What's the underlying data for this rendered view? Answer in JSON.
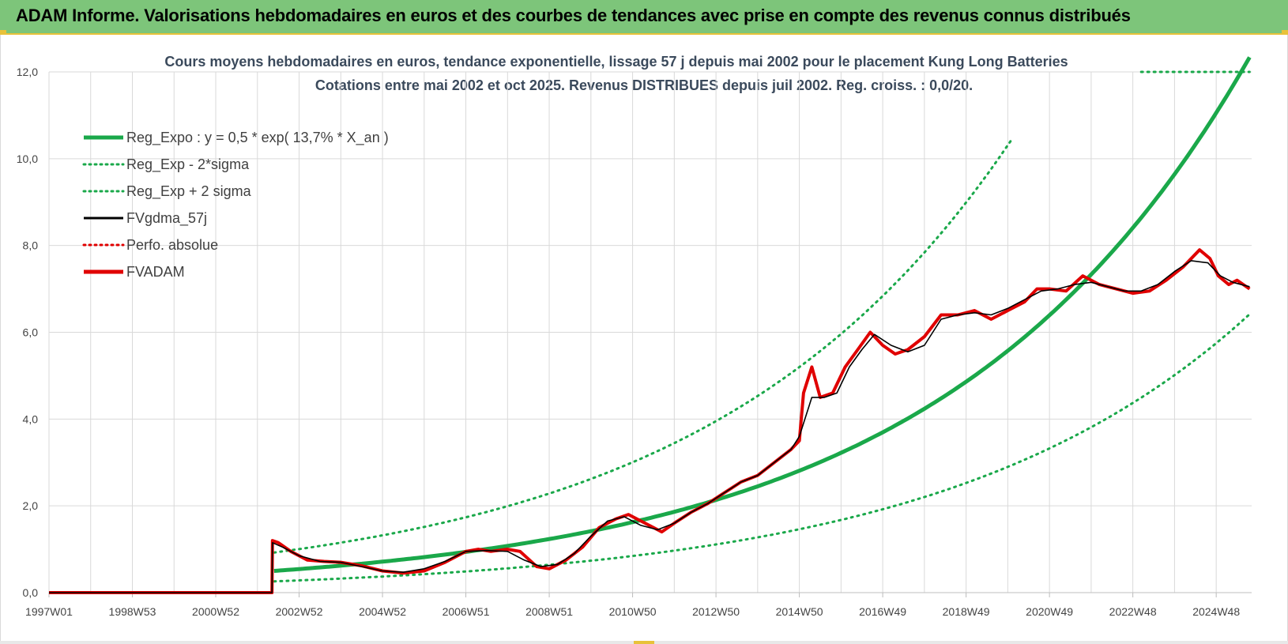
{
  "banner": {
    "title": "ADAM Informe. Valorisations hebdomadaires en euros et des courbes de tendances avec prise en compte des revenus connus distribués"
  },
  "colors": {
    "banner_bg": "#7dc57a",
    "accent_yellow": "#e8c23a",
    "reg_expo": "#1aa84a",
    "sigma_bands": "#1aa84a",
    "fvgdma": "#000000",
    "perfo": "#e00000",
    "fvadam": "#e00000",
    "grid": "#d9d9d9",
    "title_text": "#3b4a5c"
  },
  "chart_data": {
    "type": "line",
    "title_line1": "Cours moyens hebdomadaires en euros, tendance exponentielle, lissage 57 j depuis mai 2002 pour le placement Kung Long Batteries",
    "title_line2": "Cotations entre mai 2002 et oct 2025. Revenus DISTRIBUES depuis juil 2002. Reg. croiss. : 0,0/20.",
    "xlabel": "",
    "ylabel": "",
    "ylim": [
      0,
      12
    ],
    "y_ticks": [
      "0,0",
      "2,0",
      "4,0",
      "6,0",
      "8,0",
      "10,0",
      "12,0"
    ],
    "y_tick_values": [
      0,
      2,
      4,
      6,
      8,
      10,
      12
    ],
    "x_range_years": [
      1997.0,
      2025.85
    ],
    "x_tick_labels": [
      "1997W01",
      "1998W53",
      "2000W52",
      "2002W52",
      "2004W52",
      "2006W51",
      "2008W51",
      "2010W50",
      "2012W50",
      "2014W50",
      "2016W49",
      "2018W49",
      "2020W49",
      "2022W48",
      "2024W48"
    ],
    "x_tick_years": [
      1997.0,
      1999.0,
      2001.0,
      2003.0,
      2005.0,
      2007.0,
      2009.0,
      2011.0,
      2013.0,
      2015.0,
      2017.0,
      2019.0,
      2021.0,
      2023.0,
      2025.0
    ],
    "grid": true,
    "legend_position": "top-left",
    "legend": [
      {
        "label": "Reg_Expo : y = 0,5 * exp( 13,7% *  X_an )",
        "color": "#1aa84a",
        "style": "solid-thick"
      },
      {
        "label": "Reg_Exp - 2*sigma",
        "color": "#1aa84a",
        "style": "dotted"
      },
      {
        "label": "Reg_Exp + 2 sigma",
        "color": "#1aa84a",
        "style": "dotted"
      },
      {
        "label": "FVgdma_57j",
        "color": "#000000",
        "style": "solid"
      },
      {
        "label": "Perfo. absolue",
        "color": "#e00000",
        "style": "dotted"
      },
      {
        "label": "FVADAM",
        "color": "#e00000",
        "style": "solid-thick"
      }
    ],
    "regression": {
      "start_year": 2002.4,
      "end_year": 2025.8,
      "a": 0.5,
      "rate": 0.137,
      "minus_2sigma_factor": 0.52,
      "plus_2sigma_factor": 1.85,
      "upper_band_cap": 12.0
    },
    "series": [
      {
        "name": "FVADAM",
        "x": [
          1997.0,
          2002.35,
          2002.36,
          2002.5,
          2002.8,
          2003.2,
          2003.6,
          2004.0,
          2004.5,
          2005.0,
          2005.5,
          2006.0,
          2006.5,
          2007.0,
          2007.3,
          2007.6,
          2008.0,
          2008.3,
          2008.7,
          2009.0,
          2009.4,
          2009.8,
          2010.2,
          2010.6,
          2010.9,
          2011.3,
          2011.7,
          2012.0,
          2012.4,
          2012.8,
          2013.2,
          2013.6,
          2014.0,
          2014.4,
          2014.8,
          2015.0,
          2015.1,
          2015.3,
          2015.5,
          2015.8,
          2016.1,
          2016.4,
          2016.7,
          2017.0,
          2017.3,
          2017.6,
          2018.0,
          2018.4,
          2018.8,
          2019.2,
          2019.6,
          2020.0,
          2020.4,
          2020.7,
          2021.0,
          2021.4,
          2021.8,
          2022.2,
          2022.6,
          2023.0,
          2023.4,
          2023.8,
          2024.2,
          2024.6,
          2024.85,
          2025.05,
          2025.3,
          2025.5,
          2025.8
        ],
        "y": [
          0.0,
          0.0,
          1.2,
          1.15,
          0.95,
          0.75,
          0.72,
          0.7,
          0.62,
          0.5,
          0.45,
          0.5,
          0.7,
          0.95,
          1.0,
          0.95,
          1.0,
          0.95,
          0.6,
          0.55,
          0.75,
          1.05,
          1.5,
          1.7,
          1.8,
          1.6,
          1.4,
          1.6,
          1.85,
          2.05,
          2.3,
          2.55,
          2.7,
          3.0,
          3.3,
          3.5,
          4.6,
          5.2,
          4.5,
          4.6,
          5.2,
          5.6,
          6.0,
          5.7,
          5.5,
          5.6,
          5.9,
          6.4,
          6.4,
          6.5,
          6.3,
          6.5,
          6.7,
          7.0,
          7.0,
          6.95,
          7.3,
          7.1,
          7.0,
          6.9,
          6.95,
          7.2,
          7.5,
          7.9,
          7.7,
          7.3,
          7.1,
          7.2,
          7.0
        ]
      },
      {
        "name": "FVgdma_57j",
        "x": [
          1997.0,
          2002.35,
          2002.36,
          2002.6,
          2003.0,
          2003.5,
          2004.0,
          2004.5,
          2005.0,
          2005.5,
          2006.0,
          2006.5,
          2007.0,
          2007.5,
          2008.0,
          2008.4,
          2008.8,
          2009.2,
          2009.6,
          2010.0,
          2010.4,
          2010.8,
          2011.2,
          2011.6,
          2012.0,
          2012.4,
          2012.8,
          2013.2,
          2013.6,
          2014.0,
          2014.4,
          2014.8,
          2015.0,
          2015.3,
          2015.6,
          2015.9,
          2016.2,
          2016.5,
          2016.8,
          2017.2,
          2017.6,
          2018.0,
          2018.4,
          2018.8,
          2019.2,
          2019.6,
          2020.0,
          2020.4,
          2020.8,
          2021.2,
          2021.6,
          2022.0,
          2022.4,
          2022.8,
          2023.2,
          2023.6,
          2024.0,
          2024.4,
          2024.8,
          2025.1,
          2025.4,
          2025.8
        ],
        "y": [
          0.0,
          0.0,
          1.15,
          1.05,
          0.85,
          0.72,
          0.7,
          0.6,
          0.5,
          0.47,
          0.55,
          0.72,
          0.95,
          0.97,
          0.95,
          0.75,
          0.6,
          0.65,
          0.9,
          1.3,
          1.65,
          1.75,
          1.55,
          1.45,
          1.6,
          1.85,
          2.05,
          2.3,
          2.55,
          2.7,
          3.0,
          3.3,
          3.6,
          4.5,
          4.5,
          4.6,
          5.2,
          5.6,
          5.95,
          5.7,
          5.55,
          5.7,
          6.3,
          6.4,
          6.45,
          6.4,
          6.55,
          6.75,
          6.95,
          7.0,
          7.1,
          7.15,
          7.05,
          6.95,
          6.95,
          7.1,
          7.4,
          7.65,
          7.6,
          7.3,
          7.15,
          7.05
        ]
      }
    ]
  }
}
